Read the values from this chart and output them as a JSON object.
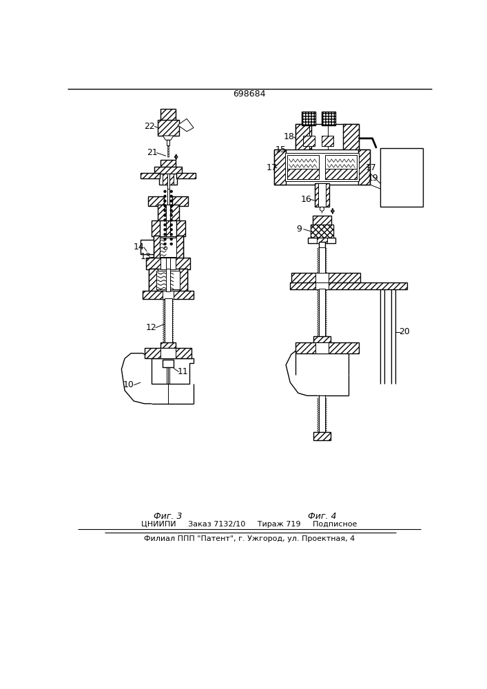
{
  "title": "698684",
  "footer_line1": "ЦНИИПИ     Заказ 7132/10     Тираж 719     Подписное",
  "footer_line2": "Филиал ППП \"Патент\", г. Ужгород, ул. Проектная, 4",
  "fig3_label": "Фиг. 3",
  "fig4_label": "Фиг. 4",
  "bg_color": "#ffffff",
  "line_color": "#000000"
}
